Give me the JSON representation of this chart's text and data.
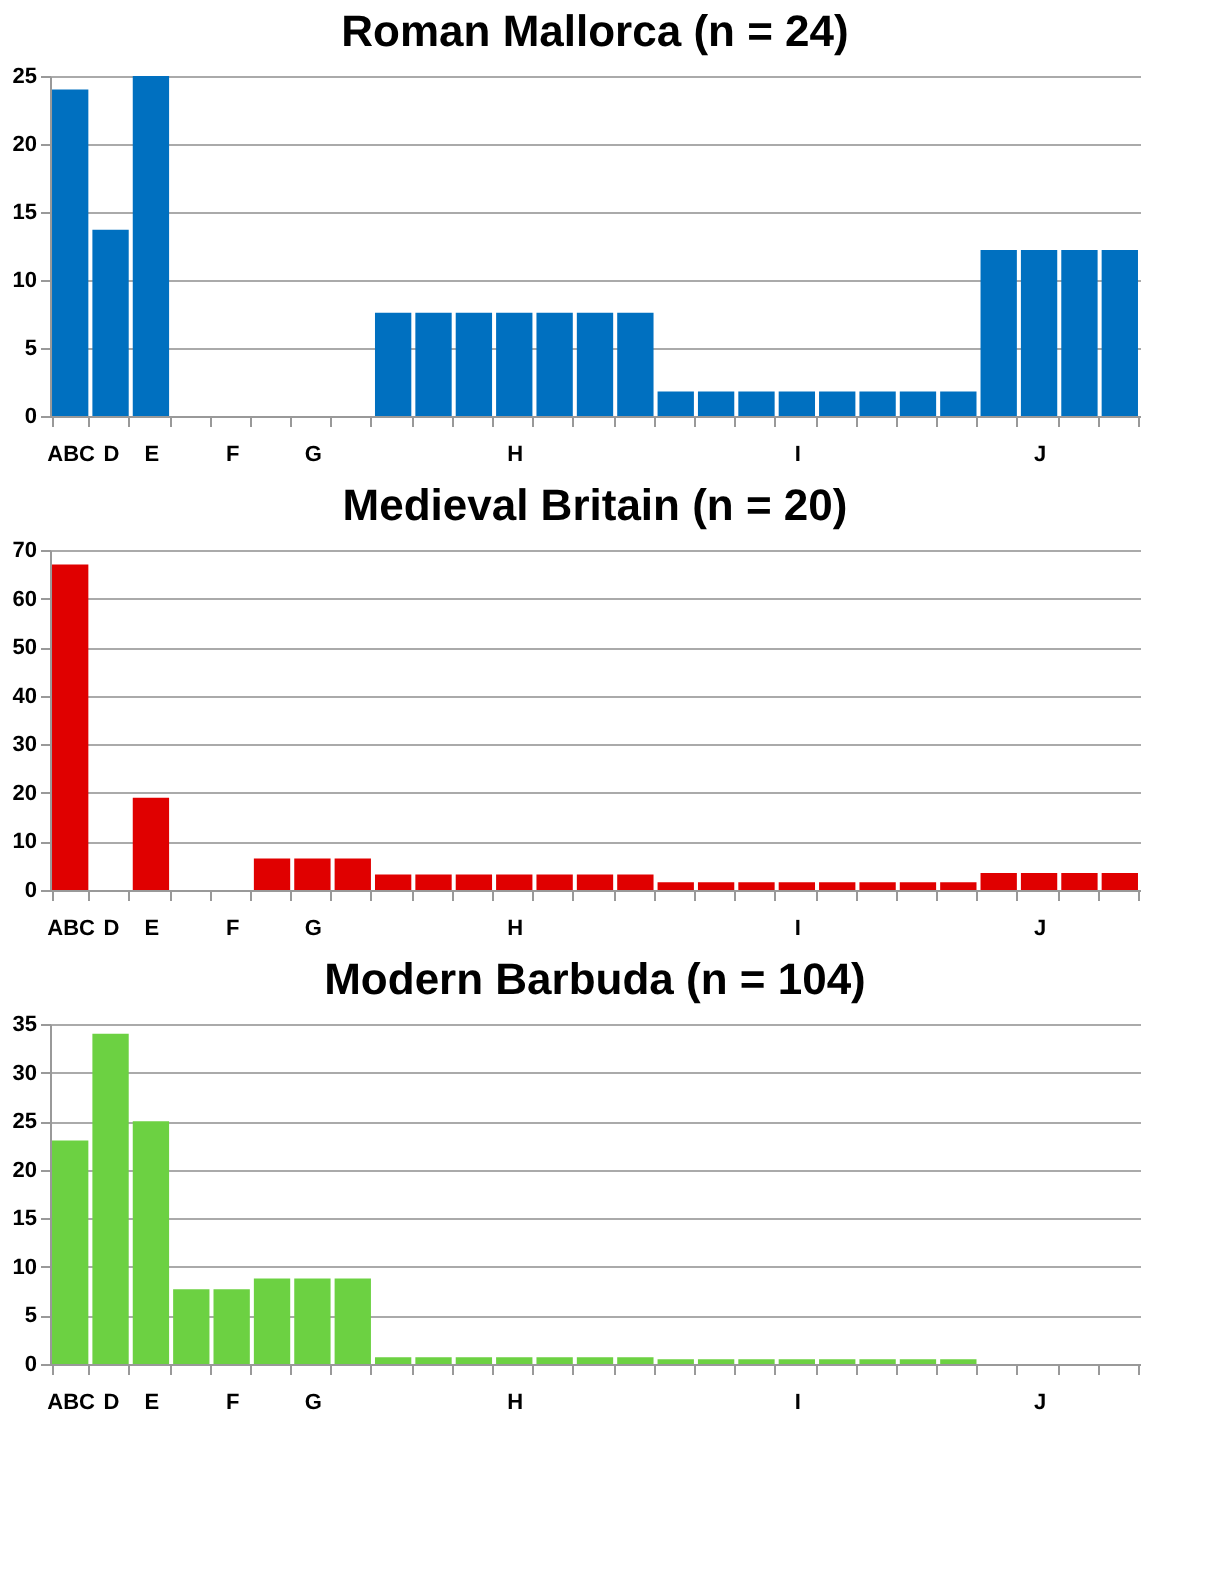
{
  "chart_data": [
    {
      "type": "bar",
      "title": "Roman Mallorca (n = 24)",
      "color": "#0070c0",
      "grid": "y",
      "ylim": [
        0,
        25
      ],
      "yticks": [
        0,
        5,
        10,
        15,
        20,
        25
      ],
      "categories": [
        "ABC",
        "D",
        "E",
        null,
        "F",
        null,
        "G",
        null,
        null,
        null,
        null,
        "H",
        null,
        null,
        null,
        null,
        null,
        null,
        "I",
        null,
        null,
        null,
        null,
        null,
        "J",
        null,
        null
      ],
      "values": [
        24,
        13.7,
        25,
        0,
        0,
        0,
        0,
        0,
        7.6,
        7.6,
        7.6,
        7.6,
        7.6,
        7.6,
        7.6,
        1.8,
        1.8,
        1.8,
        1.8,
        1.8,
        1.8,
        1.8,
        1.8,
        12.2,
        12.2,
        12.2,
        12.2
      ]
    },
    {
      "type": "bar",
      "title": "Medieval Britain (n = 20)",
      "color": "#e00000",
      "grid": "y",
      "ylim": [
        0,
        70
      ],
      "yticks": [
        0,
        10,
        20,
        30,
        40,
        50,
        60,
        70
      ],
      "categories": [
        "ABC",
        "D",
        "E",
        null,
        "F",
        null,
        "G",
        null,
        null,
        null,
        null,
        "H",
        null,
        null,
        null,
        null,
        null,
        null,
        "I",
        null,
        null,
        null,
        null,
        null,
        "J",
        null,
        null
      ],
      "values": [
        67,
        0,
        19,
        0,
        0,
        6.5,
        6.5,
        6.5,
        3.2,
        3.2,
        3.2,
        3.2,
        3.2,
        3.2,
        3.2,
        1.6,
        1.6,
        1.6,
        1.6,
        1.6,
        1.6,
        1.6,
        1.6,
        3.5,
        3.5,
        3.5,
        3.5
      ]
    },
    {
      "type": "bar",
      "title": "Modern Barbuda (n = 104)",
      "color": "#6cd142",
      "grid": "y",
      "ylim": [
        0,
        35
      ],
      "yticks": [
        0,
        5,
        10,
        15,
        20,
        25,
        30,
        35
      ],
      "categories": [
        "ABC",
        "D",
        "E",
        null,
        "F",
        null,
        "G",
        null,
        null,
        null,
        null,
        "H",
        null,
        null,
        null,
        null,
        null,
        null,
        "I",
        null,
        null,
        null,
        null,
        null,
        "J",
        null,
        null
      ],
      "values": [
        23,
        34,
        25,
        7.7,
        7.7,
        8.8,
        8.8,
        8.8,
        0.7,
        0.7,
        0.7,
        0.7,
        0.7,
        0.7,
        0.7,
        0.5,
        0.5,
        0.5,
        0.5,
        0.5,
        0.5,
        0.5,
        0.5,
        0,
        0,
        0,
        0
      ]
    }
  ]
}
